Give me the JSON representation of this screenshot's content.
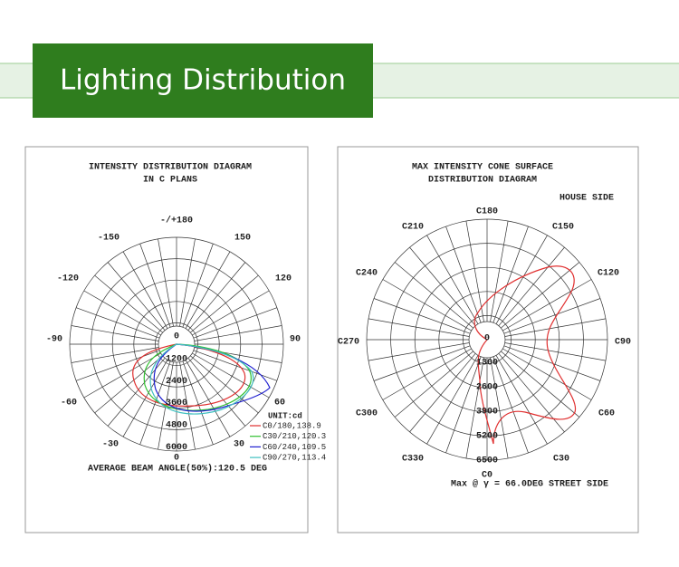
{
  "header": {
    "title": "Lighting Distribution"
  },
  "left_diagram": {
    "title_lines": [
      "INTENSITY DISTRIBUTION DIAGRAM",
      "IN C PLANS"
    ],
    "angle_labels": [
      "-/+180",
      "-150",
      "150",
      "-120",
      "120",
      "-90",
      "90",
      "-60",
      "60",
      "-30",
      "30",
      "0",
      "0"
    ],
    "ring_labels": [
      "1200",
      "2400",
      "3600",
      "4800",
      "6000"
    ],
    "unit": "UNIT:cd",
    "legend": [
      "C0/180,138.9",
      "C30/210,120.3",
      "C60/240,109.5",
      "C90/270,113.4"
    ],
    "footer": "AVERAGE BEAM ANGLE(50%):120.5 DEG"
  },
  "right_diagram": {
    "title_lines": [
      "MAX INTENSITY CONE SURFACE",
      "DISTRIBUTION DIAGRAM"
    ],
    "side_label": "HOUSE SIDE",
    "angle_labels": [
      "C180",
      "C150",
      "C210",
      "C120",
      "C240",
      "C90",
      "C270",
      "C60",
      "C300",
      "C30",
      "C330",
      "C0"
    ],
    "ring_labels": [
      "0",
      "1300",
      "2600",
      "3900",
      "5200",
      "6500"
    ],
    "footer": "Max @ γ = 66.0DEG STREET SIDE"
  }
}
